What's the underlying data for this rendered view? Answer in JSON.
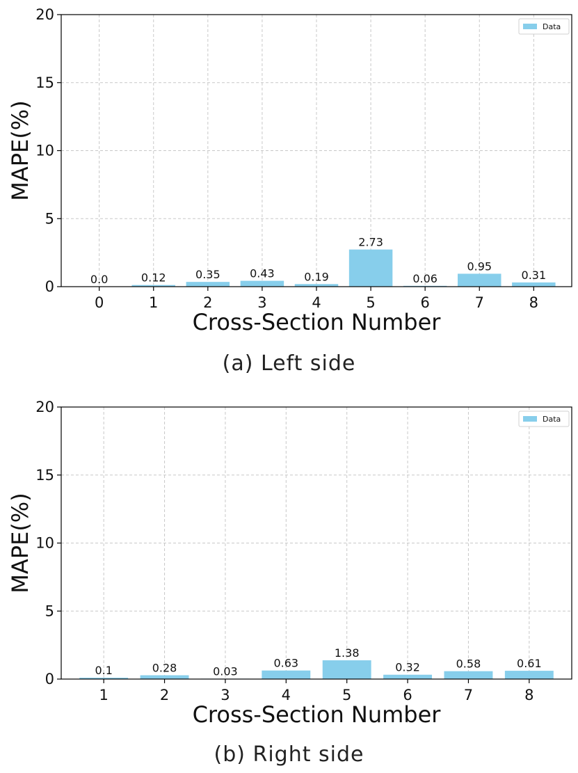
{
  "chart_data": [
    {
      "type": "bar",
      "categories": [
        "0",
        "1",
        "2",
        "3",
        "4",
        "5",
        "6",
        "7",
        "8"
      ],
      "values": [
        0.0,
        0.12,
        0.35,
        0.43,
        0.19,
        2.73,
        0.06,
        0.95,
        0.31
      ],
      "value_labels": [
        "0.0",
        "0.12",
        "0.35",
        "0.43",
        "0.19",
        "2.73",
        "0.06",
        "0.95",
        "0.31"
      ],
      "xlabel": "Cross-Section Number",
      "ylabel": "MAPE(%)",
      "ylim": [
        0,
        20
      ],
      "yticks": [
        "0",
        "5",
        "10",
        "15",
        "20"
      ],
      "legend": {
        "label": "Data",
        "placement": "top-right"
      },
      "grid": true,
      "bar_color": "#87ceeb",
      "caption": "(a) Left side"
    },
    {
      "type": "bar",
      "categories": [
        "1",
        "2",
        "3",
        "4",
        "5",
        "6",
        "7",
        "8"
      ],
      "values": [
        0.1,
        0.28,
        0.03,
        0.63,
        1.38,
        0.32,
        0.58,
        0.61
      ],
      "value_labels": [
        "0.1",
        "0.28",
        "0.03",
        "0.63",
        "1.38",
        "0.32",
        "0.58",
        "0.61"
      ],
      "xlabel": "Cross-Section Number",
      "ylabel": "MAPE(%)",
      "ylim": [
        0,
        20
      ],
      "yticks": [
        "0",
        "5",
        "10",
        "15",
        "20"
      ],
      "legend": {
        "label": "Data",
        "placement": "top-right"
      },
      "grid": true,
      "bar_color": "#87ceeb",
      "caption": "(b) Right side"
    }
  ]
}
